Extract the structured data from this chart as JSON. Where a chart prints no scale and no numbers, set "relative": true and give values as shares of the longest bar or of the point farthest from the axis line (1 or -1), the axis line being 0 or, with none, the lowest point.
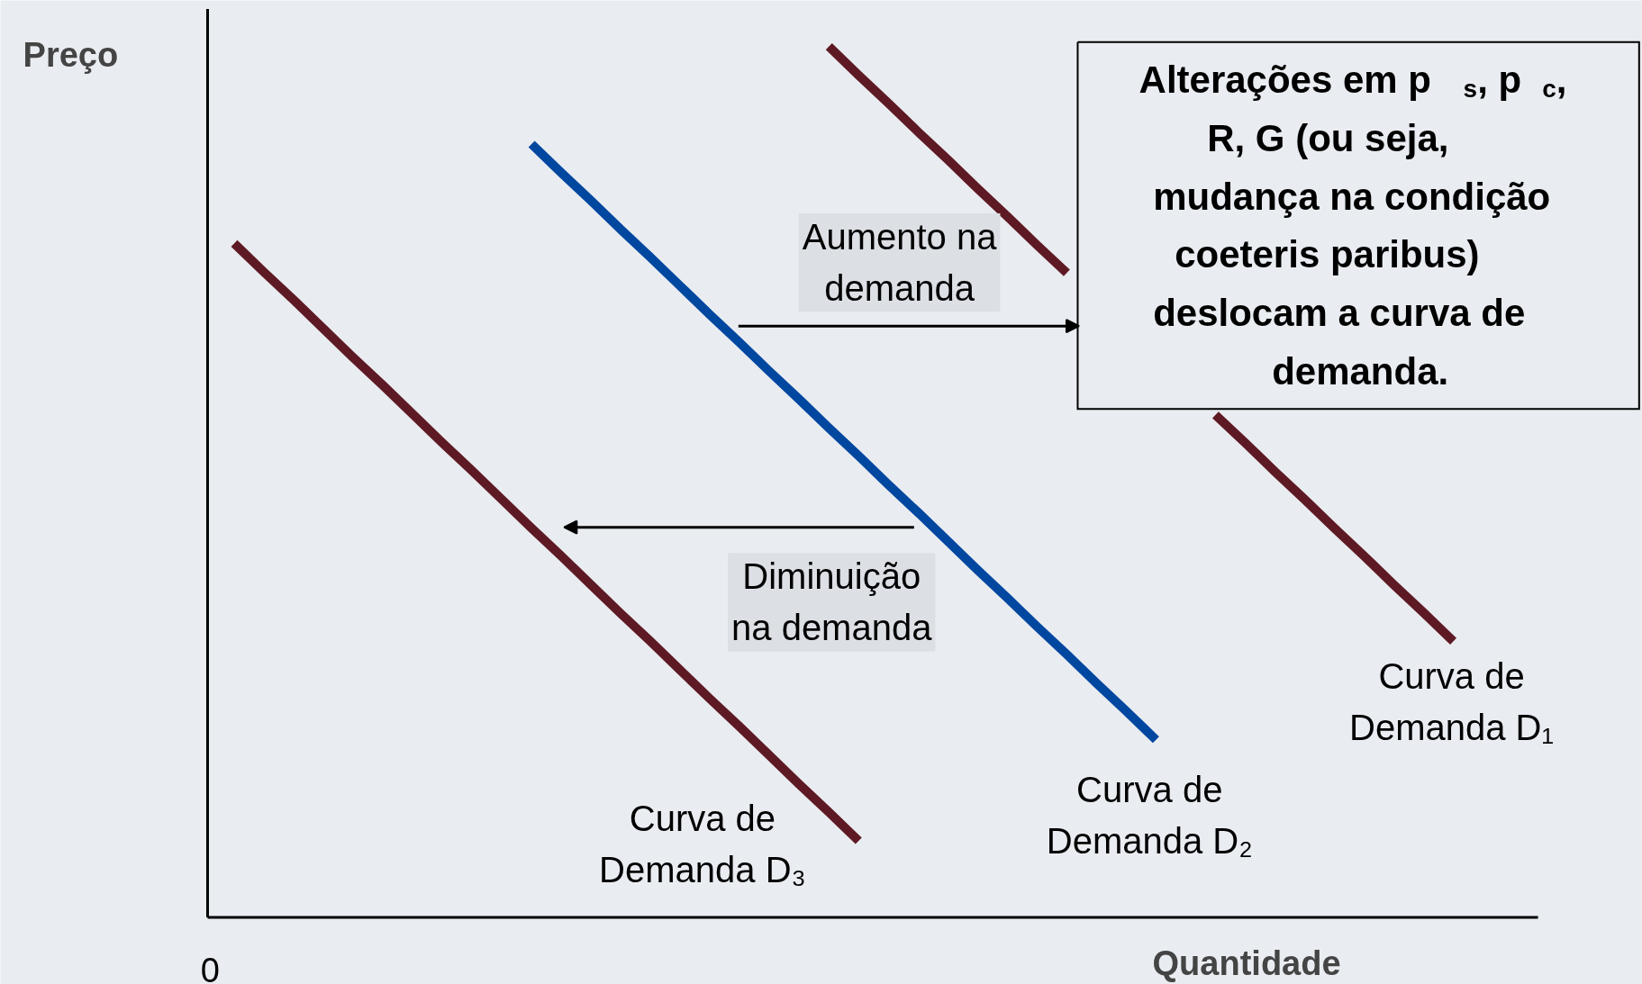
{
  "chart_data": {
    "type": "line",
    "relative": true,
    "xlabel": "Quantidade",
    "ylabel": "Preço",
    "grid": false,
    "legend": false,
    "marker": "none",
    "line_style": "solid",
    "categories": [
      null,
      null,
      null,
      null,
      null,
      null,
      null,
      null,
      null,
      null,
      null,
      null,
      null,
      null,
      null,
      null,
      null,
      null,
      null,
      null,
      null,
      null,
      null,
      null,
      null,
      null,
      null,
      null,
      null,
      null,
      null,
      null,
      null,
      null,
      null,
      null,
      null,
      null,
      null,
      null,
      null,
      null
    ],
    "series": [
      {
        "name": "Curva de Demanda D₁",
        "color": "#5e1a24",
        "values": [
          null,
          null,
          null,
          null,
          null,
          null,
          null,
          null,
          null,
          null,
          null,
          null,
          null,
          null,
          null,
          null,
          null,
          null,
          null,
          null,
          1,
          0.967,
          0.935,
          0.902,
          0.87,
          0.837,
          0.805,
          0.772,
          0.74,
          null,
          null,
          null,
          null,
          0.577,
          0.545,
          0.512,
          0.48,
          0.447,
          0.415,
          0.382,
          0.35,
          0.317
        ]
      },
      {
        "name": "Curva de Demanda D₂",
        "color": "#0047a0",
        "values": [
          null,
          null,
          null,
          null,
          null,
          null,
          null,
          null,
          null,
          null,
          0.888,
          0.855,
          0.823,
          0.79,
          0.758,
          0.725,
          0.692,
          0.66,
          0.627,
          0.595,
          0.562,
          0.53,
          0.497,
          0.465,
          0.432,
          0.399,
          0.367,
          0.334,
          0.302,
          0.269,
          0.237,
          0.204,
          null,
          null,
          null,
          null,
          null,
          null,
          null,
          null,
          null,
          null
        ]
      },
      {
        "name": "Curva de Demanda D₃",
        "color": "#5e1a24",
        "values": [
          0.774,
          0.741,
          0.709,
          0.676,
          0.643,
          0.611,
          0.578,
          0.545,
          0.513,
          0.48,
          0.447,
          0.415,
          0.382,
          0.349,
          0.317,
          0.284,
          0.251,
          0.219,
          0.186,
          0.153,
          0.121,
          0.088,
          null,
          null,
          null,
          null,
          null,
          null,
          null,
          null,
          null,
          null,
          null,
          null,
          null,
          null,
          null,
          null,
          null,
          null,
          null,
          null
        ]
      }
    ],
    "annotations": [
      "Aumento na demanda",
      "Diminuição na demanda",
      "Alterações em p$_{s}$, p$_{c}$,\nR, G (ou seja,\nmudança na condição\ncoeteris paribus)\ndeslocam a curva de\ndemanda.",
      "0"
    ]
  }
}
